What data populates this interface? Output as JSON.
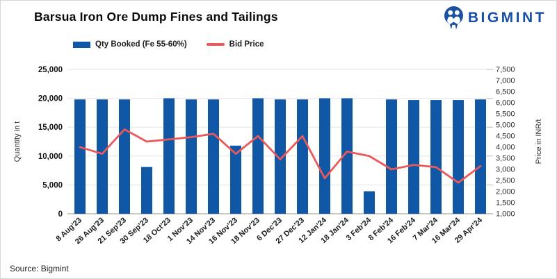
{
  "header": {
    "title": "Barsua Iron Ore Dump Fines and Tailings",
    "brand_name": "BIGMINT"
  },
  "legend": {
    "qty_label": "Qty Booked (Fe 55-60%)",
    "price_label": "Bid Price"
  },
  "footer": {
    "source": "Source: Bigmint"
  },
  "colors": {
    "bar": "#1057a5",
    "line": "#e8595a",
    "brand": "#1950a5",
    "gridline": "#e3e3e3",
    "axis_line": "#ababab",
    "tick_mark": "#bdbdbd"
  },
  "chart_data": {
    "type": "bar",
    "combo": "bar+line",
    "title": "Barsua Iron Ore Dump Fines and Tailings",
    "categories": [
      "8 Aug'23",
      "26 Aug'23",
      "21 Sep'23",
      "30 Sep'23",
      "18 Oct'23",
      "1 Nov'23",
      "14 Nov'23",
      "16 Nov'23",
      "18 Nov'23",
      "6 Dec'23",
      "27 Dec'23",
      "12 Jan'24",
      "18 Jan'24",
      "3 Feb'24",
      "8 Feb'24",
      "16 Feb'24",
      "7 Mar'24",
      "16 Mar'24",
      "29 Apr'24"
    ],
    "series": [
      {
        "name": "Qty Booked (Fe 55-60%)",
        "type": "bar",
        "axis": "left",
        "values": [
          19800,
          19800,
          19800,
          8100,
          20000,
          19800,
          19800,
          11800,
          20000,
          19800,
          19800,
          20000,
          20000,
          3900,
          19800,
          19700,
          19700,
          19700,
          19800
        ]
      },
      {
        "name": "Bid Price",
        "type": "line",
        "axis": "right",
        "values": [
          4000,
          3700,
          4800,
          4250,
          4350,
          4450,
          4600,
          3700,
          4500,
          3450,
          4500,
          2600,
          3800,
          3600,
          3000,
          3200,
          3100,
          2400,
          3150
        ]
      }
    ],
    "left_axis": {
      "label": "Quantity in t",
      "min": 0,
      "max": 25000,
      "step": 5000
    },
    "right_axis": {
      "label": "Price in INR/t",
      "min": 1000,
      "max": 7500,
      "step": 500
    },
    "grid": true,
    "legend_position": "top-left",
    "x_label_rotation": -42
  }
}
